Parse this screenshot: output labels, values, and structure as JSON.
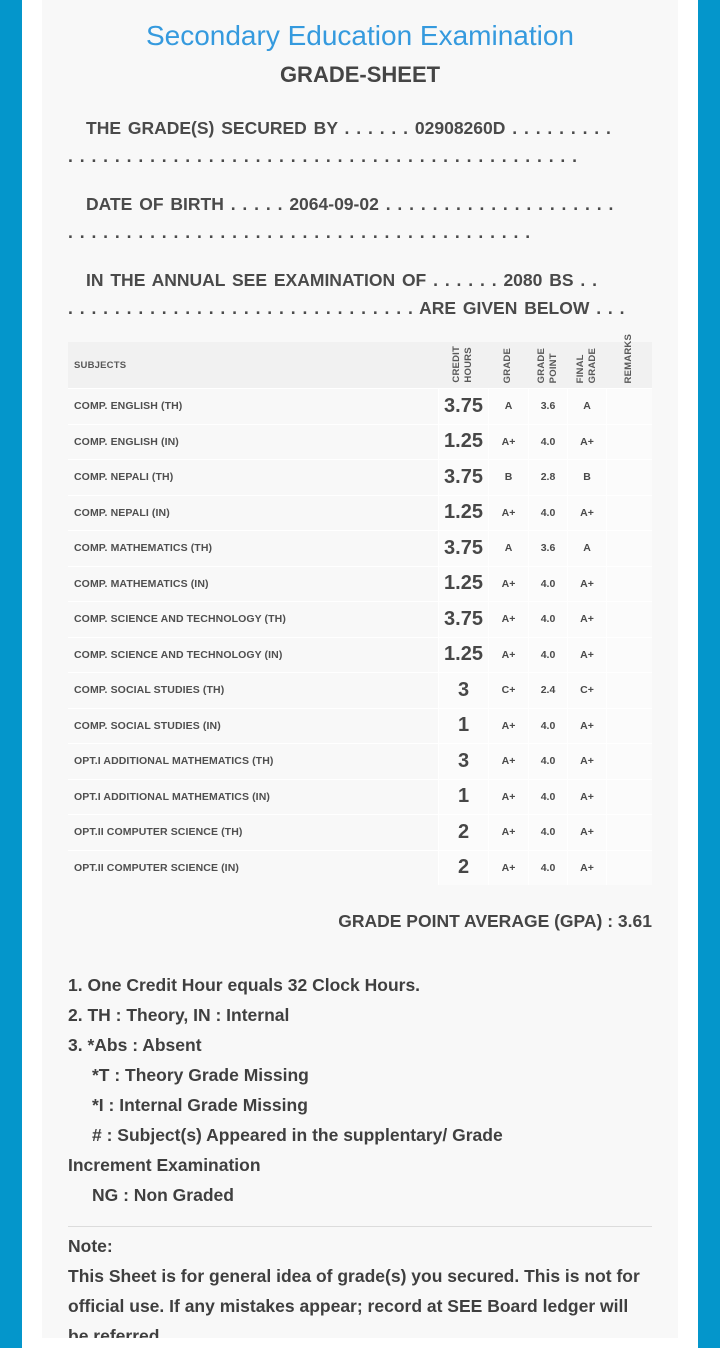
{
  "colors": {
    "page_background": "#0496cb",
    "card_background": "#ffffff",
    "panel_background": "#f8f8f8",
    "title_blue": "#359ade",
    "text_dark": "#454545"
  },
  "header": {
    "title": "Secondary Education Examination",
    "subtitle": "GRADE-SHEET"
  },
  "statements": [
    {
      "lines": [
        "THE GRADE(S) SECURED BY . . . . . . 02908260D . . . . . . . . .",
        ". . . . . . . . . . . . . . . . . . . . . . . . . . . . . . . . . . . . . . . . . . . ."
      ]
    },
    {
      "lines": [
        "DATE OF BIRTH . . . . . 2064-09-02 . . . . . . . . . . . . . . . . . . . .",
        ". . . . . . . . . . . . . . . . . . . . . . . . . . . . . . . . . . . . . . . ."
      ]
    },
    {
      "lines": [
        "IN THE ANNUAL SEE EXAMINATION OF . . . . . . 2080 BS . .",
        ". . . . . . . . . . . . . . . . . . . . . . . . . . . . . . ARE GIVEN BELOW . . ."
      ]
    }
  ],
  "table": {
    "columns": [
      {
        "key": "subject",
        "label": "SUBJECTS",
        "rotated": false
      },
      {
        "key": "credit",
        "label": "CREDIT\nHOURS",
        "rotated": true
      },
      {
        "key": "grade",
        "label": "GRADE",
        "rotated": true
      },
      {
        "key": "grade_point",
        "label": "GRADE\nPOINT",
        "rotated": true
      },
      {
        "key": "final_grade",
        "label": "FINAL\nGRADE",
        "rotated": true
      },
      {
        "key": "remarks",
        "label": "REMARKS",
        "rotated": true
      }
    ],
    "rows": [
      {
        "subject": "COMP. ENGLISH (TH)",
        "credit": "3.75",
        "grade": "A",
        "grade_point": "3.6",
        "final_grade": "A",
        "remarks": ""
      },
      {
        "subject": "COMP. ENGLISH (IN)",
        "credit": "1.25",
        "grade": "A+",
        "grade_point": "4.0",
        "final_grade": "A+",
        "remarks": ""
      },
      {
        "subject": "COMP. NEPALI (TH)",
        "credit": "3.75",
        "grade": "B",
        "grade_point": "2.8",
        "final_grade": "B",
        "remarks": ""
      },
      {
        "subject": "COMP. NEPALI (IN)",
        "credit": "1.25",
        "grade": "A+",
        "grade_point": "4.0",
        "final_grade": "A+",
        "remarks": ""
      },
      {
        "subject": "COMP. MATHEMATICS (TH)",
        "credit": "3.75",
        "grade": "A",
        "grade_point": "3.6",
        "final_grade": "A",
        "remarks": ""
      },
      {
        "subject": "COMP. MATHEMATICS (IN)",
        "credit": "1.25",
        "grade": "A+",
        "grade_point": "4.0",
        "final_grade": "A+",
        "remarks": ""
      },
      {
        "subject": "COMP. SCIENCE AND TECHNOLOGY (TH)",
        "credit": "3.75",
        "grade": "A+",
        "grade_point": "4.0",
        "final_grade": "A+",
        "remarks": ""
      },
      {
        "subject": "COMP. SCIENCE AND TECHNOLOGY (IN)",
        "credit": "1.25",
        "grade": "A+",
        "grade_point": "4.0",
        "final_grade": "A+",
        "remarks": ""
      },
      {
        "subject": "COMP. SOCIAL STUDIES (TH)",
        "credit": "3",
        "grade": "C+",
        "grade_point": "2.4",
        "final_grade": "C+",
        "remarks": ""
      },
      {
        "subject": "COMP. SOCIAL STUDIES (IN)",
        "credit": "1",
        "grade": "A+",
        "grade_point": "4.0",
        "final_grade": "A+",
        "remarks": ""
      },
      {
        "subject": "OPT.I ADDITIONAL MATHEMATICS (TH)",
        "credit": "3",
        "grade": "A+",
        "grade_point": "4.0",
        "final_grade": "A+",
        "remarks": ""
      },
      {
        "subject": "OPT.I ADDITIONAL MATHEMATICS (IN)",
        "credit": "1",
        "grade": "A+",
        "grade_point": "4.0",
        "final_grade": "A+",
        "remarks": ""
      },
      {
        "subject": "OPT.II COMPUTER SCIENCE (TH)",
        "credit": "2",
        "grade": "A+",
        "grade_point": "4.0",
        "final_grade": "A+",
        "remarks": ""
      },
      {
        "subject": "OPT.II COMPUTER SCIENCE (IN)",
        "credit": "2",
        "grade": "A+",
        "grade_point": "4.0",
        "final_grade": "A+",
        "remarks": ""
      }
    ]
  },
  "summary": {
    "gpa_line": "GRADE POINT AVERAGE (GPA) : 3.61"
  },
  "footnotes": [
    {
      "text": "1. One Credit Hour equals 32 Clock Hours.",
      "indent": false
    },
    {
      "text": "2. TH : Theory, IN : Internal",
      "indent": false
    },
    {
      "text": "3. *Abs : Absent",
      "indent": false
    },
    {
      "text": "*T : Theory Grade Missing",
      "indent": true
    },
    {
      "text": "*I : Internal Grade Missing",
      "indent": true
    },
    {
      "text": "# : Subject(s) Appeared in the supplentary/ Grade",
      "indent": true
    },
    {
      "text": "Increment Examination",
      "indent": false
    },
    {
      "text": "NG : Non Graded",
      "indent": true
    }
  ],
  "note": {
    "title": "Note:",
    "body": "This Sheet is for general idea of grade(s) you secured. This is not for official use. If any mistakes appear; record at SEE Board ledger will be referred."
  }
}
